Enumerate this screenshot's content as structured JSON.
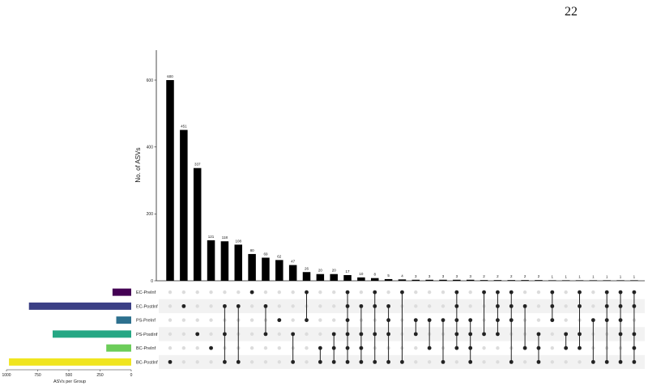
{
  "page_number": "22",
  "chart_data": {
    "type": "upset",
    "ylabel": "No. of ASVs",
    "set_size_xlabel": "ASVs per Group",
    "ylim": [
      0,
      700
    ],
    "yticks": [
      0,
      200,
      400,
      600
    ],
    "set_size_xlim": [
      0,
      1000
    ],
    "set_size_ticks": [
      1000,
      750,
      500,
      250,
      0
    ],
    "sets": [
      {
        "name": "EC-PreInf",
        "size": 150,
        "color": "#440154"
      },
      {
        "name": "EC-PostInf",
        "size": 820,
        "color": "#3b3f85"
      },
      {
        "name": "PS-PreInf",
        "size": 120,
        "color": "#2d708e"
      },
      {
        "name": "PS-PostInf",
        "size": 630,
        "color": "#25a784"
      },
      {
        "name": "BC-PreInf",
        "size": 200,
        "color": "#6ccd59"
      },
      {
        "name": "BC-PostInf",
        "size": 980,
        "color": "#f0e51f"
      }
    ],
    "intersections": [
      {
        "value": 600,
        "label": "600",
        "sets": [
          "BC-PostInf"
        ]
      },
      {
        "value": 451,
        "label": "451",
        "sets": [
          "EC-PostInf"
        ]
      },
      {
        "value": 337,
        "label": "337",
        "sets": [
          "PS-PostInf"
        ]
      },
      {
        "value": 121,
        "label": "121",
        "sets": [
          "BC-PreInf"
        ]
      },
      {
        "value": 118,
        "label": "118",
        "sets": [
          "EC-PostInf",
          "PS-PostInf",
          "BC-PostInf"
        ]
      },
      {
        "value": 108,
        "label": "108",
        "sets": [
          "EC-PostInf",
          "BC-PostInf"
        ]
      },
      {
        "value": 80,
        "label": "80",
        "sets": [
          "EC-PreInf"
        ]
      },
      {
        "value": 69,
        "label": "69",
        "sets": [
          "EC-PostInf",
          "PS-PostInf"
        ]
      },
      {
        "value": 62,
        "label": "62",
        "sets": [
          "PS-PreInf"
        ]
      },
      {
        "value": 47,
        "label": "47",
        "sets": [
          "PS-PostInf",
          "BC-PostInf"
        ]
      },
      {
        "value": 26,
        "label": "26",
        "sets": [
          "EC-PreInf",
          "PS-PreInf"
        ]
      },
      {
        "value": 20,
        "label": "20",
        "sets": [
          "BC-PreInf",
          "BC-PostInf"
        ]
      },
      {
        "value": 20,
        "label": "20",
        "sets": [
          "PS-PostInf",
          "BC-PreInf",
          "BC-PostInf"
        ]
      },
      {
        "value": 17,
        "label": "17",
        "sets": [
          "EC-PreInf",
          "EC-PostInf",
          "PS-PreInf",
          "PS-PostInf",
          "BC-PreInf",
          "BC-PostInf"
        ]
      },
      {
        "value": 10,
        "label": "10",
        "sets": [
          "EC-PostInf",
          "PS-PostInf",
          "BC-PreInf",
          "BC-PostInf"
        ]
      },
      {
        "value": 8,
        "label": "8",
        "sets": [
          "EC-PreInf",
          "EC-PostInf",
          "PS-PostInf",
          "BC-PostInf"
        ]
      },
      {
        "value": 5,
        "label": "5",
        "sets": [
          "EC-PostInf",
          "PS-PreInf",
          "PS-PostInf",
          "BC-PostInf"
        ]
      },
      {
        "value": 4,
        "label": "4",
        "sets": [
          "EC-PreInf",
          "BC-PostInf"
        ]
      },
      {
        "value": 3,
        "label": "3",
        "sets": [
          "PS-PreInf",
          "PS-PostInf"
        ]
      },
      {
        "value": 3,
        "label": "3",
        "sets": [
          "PS-PreInf",
          "BC-PreInf"
        ]
      },
      {
        "value": 3,
        "label": "3",
        "sets": [
          "PS-PreInf",
          "BC-PostInf"
        ]
      },
      {
        "value": 3,
        "label": "3",
        "sets": [
          "EC-PreInf",
          "EC-PostInf",
          "PS-PreInf",
          "PS-PostInf",
          "BC-PreInf"
        ]
      },
      {
        "value": 3,
        "label": "3",
        "sets": [
          "PS-PreInf",
          "PS-PostInf",
          "BC-PreInf",
          "BC-PostInf"
        ]
      },
      {
        "value": 2,
        "label": "2",
        "sets": [
          "EC-PreInf",
          "PS-PostInf"
        ]
      },
      {
        "value": 2,
        "label": "2",
        "sets": [
          "EC-PreInf",
          "EC-PostInf",
          "PS-PreInf",
          "PS-PostInf"
        ]
      },
      {
        "value": 2,
        "label": "2",
        "sets": [
          "EC-PreInf",
          "EC-PostInf",
          "PS-PreInf",
          "BC-PostInf"
        ]
      },
      {
        "value": 2,
        "label": "2",
        "sets": [
          "EC-PostInf",
          "BC-PreInf"
        ]
      },
      {
        "value": 2,
        "label": "2",
        "sets": [
          "PS-PostInf",
          "BC-PreInf",
          "BC-PostInf"
        ]
      },
      {
        "value": 1,
        "label": "1",
        "sets": [
          "EC-PreInf",
          "EC-PostInf",
          "PS-PreInf"
        ]
      },
      {
        "value": 1,
        "label": "1",
        "sets": [
          "PS-PostInf",
          "BC-PreInf"
        ]
      },
      {
        "value": 1,
        "label": "1",
        "sets": [
          "EC-PreInf",
          "EC-PostInf",
          "PS-PostInf",
          "BC-PreInf"
        ]
      },
      {
        "value": 1,
        "label": "1",
        "sets": [
          "PS-PreInf",
          "BC-PostInf"
        ]
      },
      {
        "value": 1,
        "label": "1",
        "sets": [
          "EC-PreInf",
          "EC-PostInf",
          "PS-PreInf",
          "BC-PostInf"
        ]
      },
      {
        "value": 1,
        "label": "1",
        "sets": [
          "EC-PreInf",
          "EC-PostInf",
          "PS-PreInf",
          "PS-PostInf",
          "BC-PostInf"
        ]
      },
      {
        "value": 1,
        "label": "1",
        "sets": [
          "EC-PreInf",
          "EC-PostInf",
          "PS-PostInf",
          "BC-PreInf",
          "BC-PostInf"
        ]
      }
    ]
  }
}
